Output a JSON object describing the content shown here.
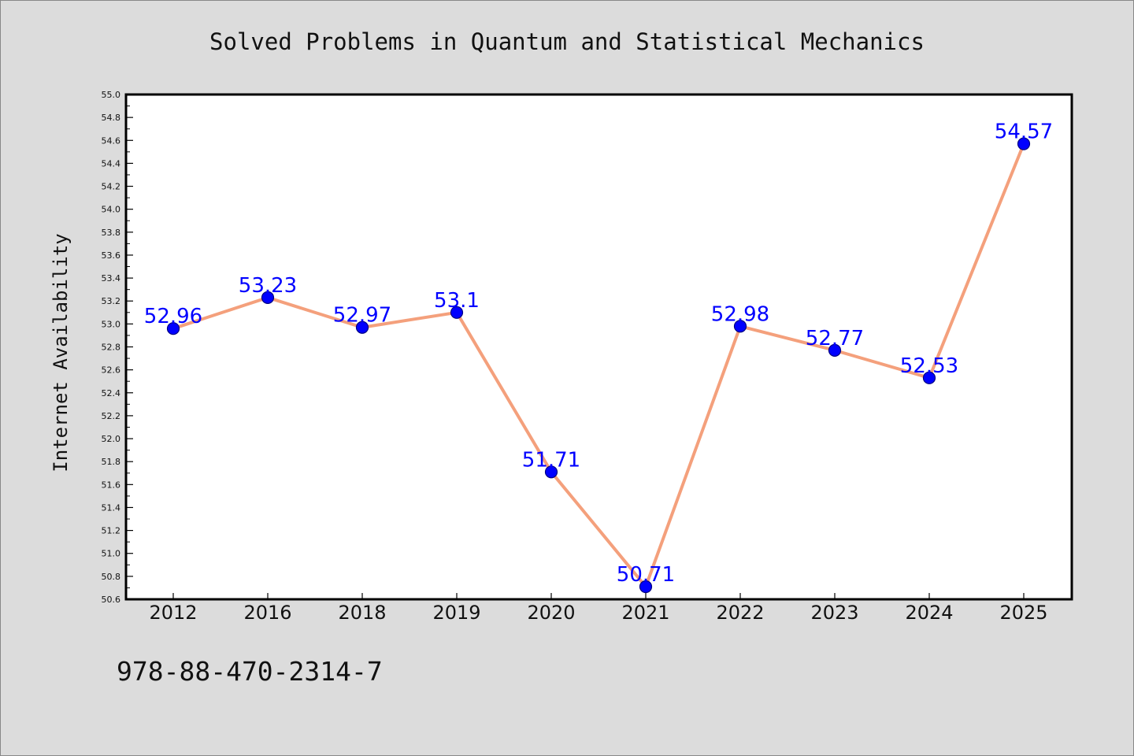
{
  "chart_data": {
    "type": "line",
    "title": "Solved Problems in Quantum and Statistical Mechanics",
    "ylabel": "Internet Availability",
    "xlabel": "",
    "categories": [
      "2012",
      "2016",
      "2018",
      "2019",
      "2020",
      "2021",
      "2022",
      "2023",
      "2024",
      "2025"
    ],
    "series": [
      {
        "values": [
          52.96,
          53.23,
          52.97,
          53.1,
          51.71,
          50.71,
          52.98,
          52.77,
          52.53,
          54.57
        ],
        "data_labels": [
          "52.96",
          "53.23",
          "52.97",
          "53.1",
          "51.71",
          "50.71",
          "52.98",
          "52.77",
          "52.53",
          "54.57"
        ]
      }
    ],
    "ylim": [
      50.6,
      55.0
    ],
    "yticks": [
      50.6,
      50.8,
      51.0,
      51.2,
      51.4,
      51.6,
      51.8,
      52.0,
      52.2,
      52.4,
      52.6,
      52.8,
      53.0,
      53.2,
      53.4,
      53.6,
      53.8,
      54.0,
      54.2,
      54.4,
      54.6,
      54.8,
      55.0
    ],
    "ytick_labels": [
      "50.6",
      "50.8",
      "51.0",
      "51.2",
      "51.4",
      "51.6",
      "51.8",
      "52.0",
      "52.2",
      "52.4",
      "52.6",
      "52.8",
      "53.0",
      "53.2",
      "53.4",
      "53.6",
      "53.8",
      "54.0",
      "54.2",
      "54.4",
      "54.6",
      "54.8",
      "55.0"
    ],
    "grid": false,
    "legend": "none",
    "colors": {
      "line": "#f4a07c",
      "marker": "#0000ff",
      "marker_edge": "#000080",
      "data_label": "#0000ff",
      "background": "#dcdcdc",
      "plot_background": "#ffffff"
    },
    "footer_text": "978-88-470-2314-7"
  }
}
